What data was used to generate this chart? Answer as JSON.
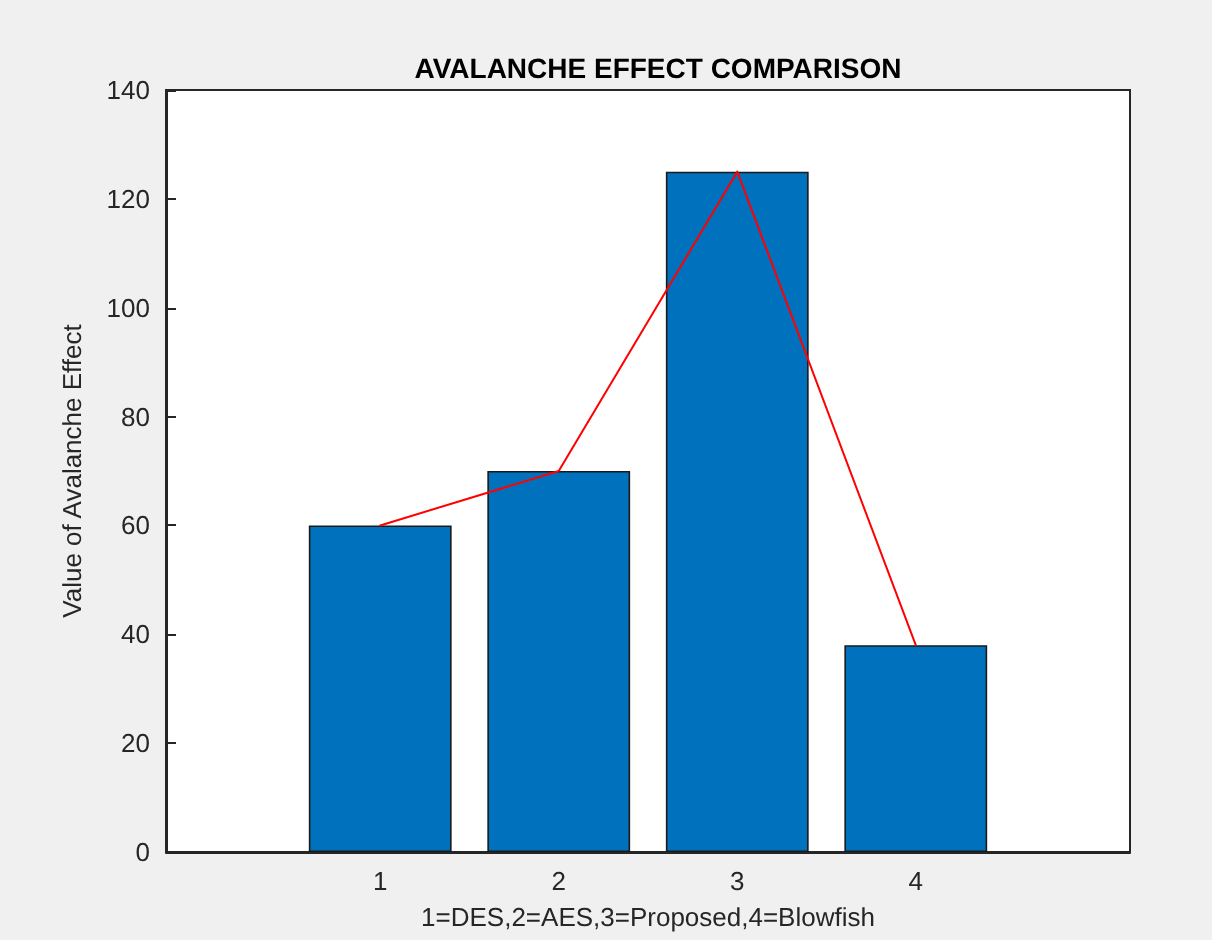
{
  "chart_data": {
    "type": "bar",
    "title": "AVALANCHE EFFECT COMPARISON",
    "xlabel": "1=DES,2=AES,3=Proposed,4=Blowfish",
    "ylabel": "Value of Avalanche Effect",
    "x": [
      1,
      2,
      3,
      4
    ],
    "series": [
      {
        "color": "#0072bd",
        "values": [
          60,
          70,
          125,
          38
        ]
      },
      {
        "type": "line",
        "color": "#ff0000",
        "values": [
          60,
          70,
          125,
          38
        ]
      }
    ],
    "xlim": [
      -0.2,
      5.2
    ],
    "xticks": [
      1,
      2,
      3,
      4
    ],
    "ylim": [
      0,
      140
    ],
    "yticks": [
      0,
      20,
      40,
      60,
      80,
      100,
      120,
      140
    ],
    "grid": false,
    "marker": "none",
    "line_style": "solid"
  }
}
